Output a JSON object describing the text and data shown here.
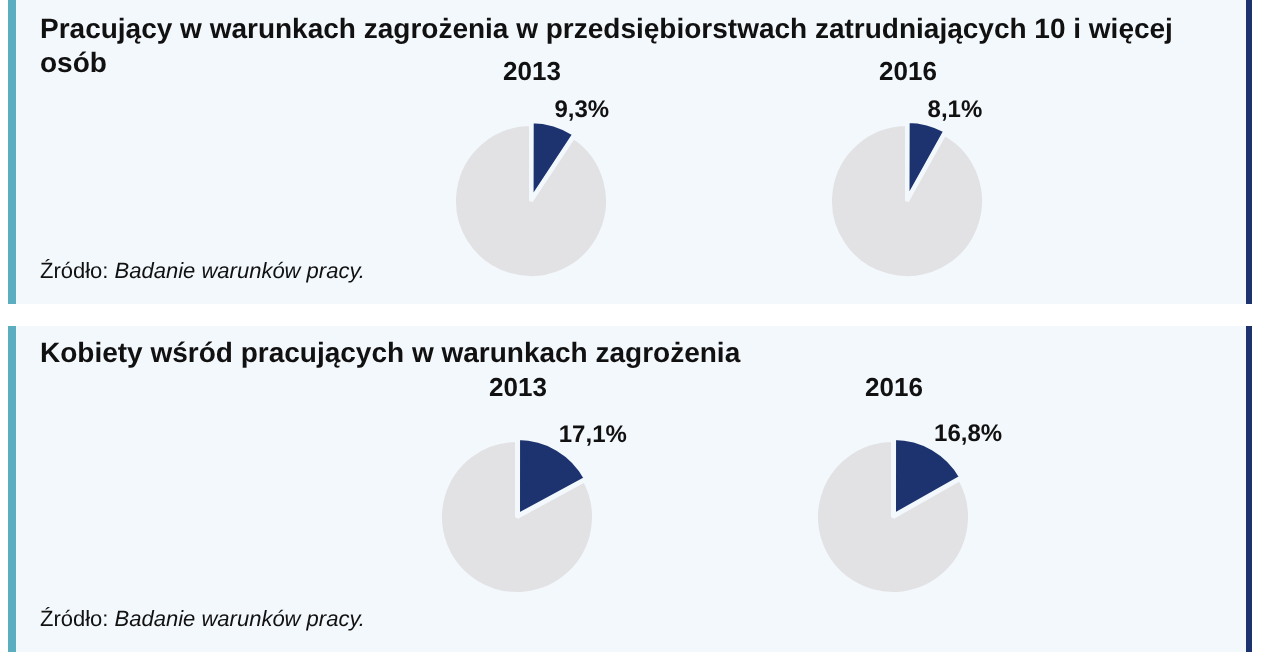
{
  "chart_data": [
    {
      "type": "pie",
      "title": "Pracujący w warunkach zagrożenia w przedsiębiorstwach zatrudniających 10 i więcej osób",
      "subtitle": "2013",
      "categories": [
        null,
        null
      ],
      "values": [
        9.3,
        90.7
      ],
      "colors": [
        "#1c3370",
        "#e2e2e4"
      ],
      "value_labels": [
        "9,3%",
        null
      ],
      "annotations": [
        "Źródło: Badanie warunków pracy."
      ]
    },
    {
      "type": "pie",
      "subtitle": "2016",
      "categories": [
        null,
        null
      ],
      "values": [
        8.1,
        91.9
      ],
      "colors": [
        "#1c3370",
        "#e2e2e4"
      ],
      "value_labels": [
        "8,1%",
        null
      ]
    },
    {
      "type": "pie",
      "title": "Kobiety wśród pracujących w warunkach zagrożenia",
      "subtitle": "2013",
      "categories": [
        null,
        null
      ],
      "values": [
        17.1,
        82.9
      ],
      "colors": [
        "#1c3370",
        "#e2e2e4"
      ],
      "value_labels": [
        "17,1%",
        null
      ],
      "annotations": [
        "Źródło: Badanie warunków pracy."
      ]
    },
    {
      "type": "pie",
      "subtitle": "2016",
      "categories": [
        null,
        null
      ],
      "values": [
        16.8,
        83.2
      ],
      "colors": [
        "#1c3370",
        "#e2e2e4"
      ],
      "value_labels": [
        "16,8%",
        null
      ]
    }
  ]
}
